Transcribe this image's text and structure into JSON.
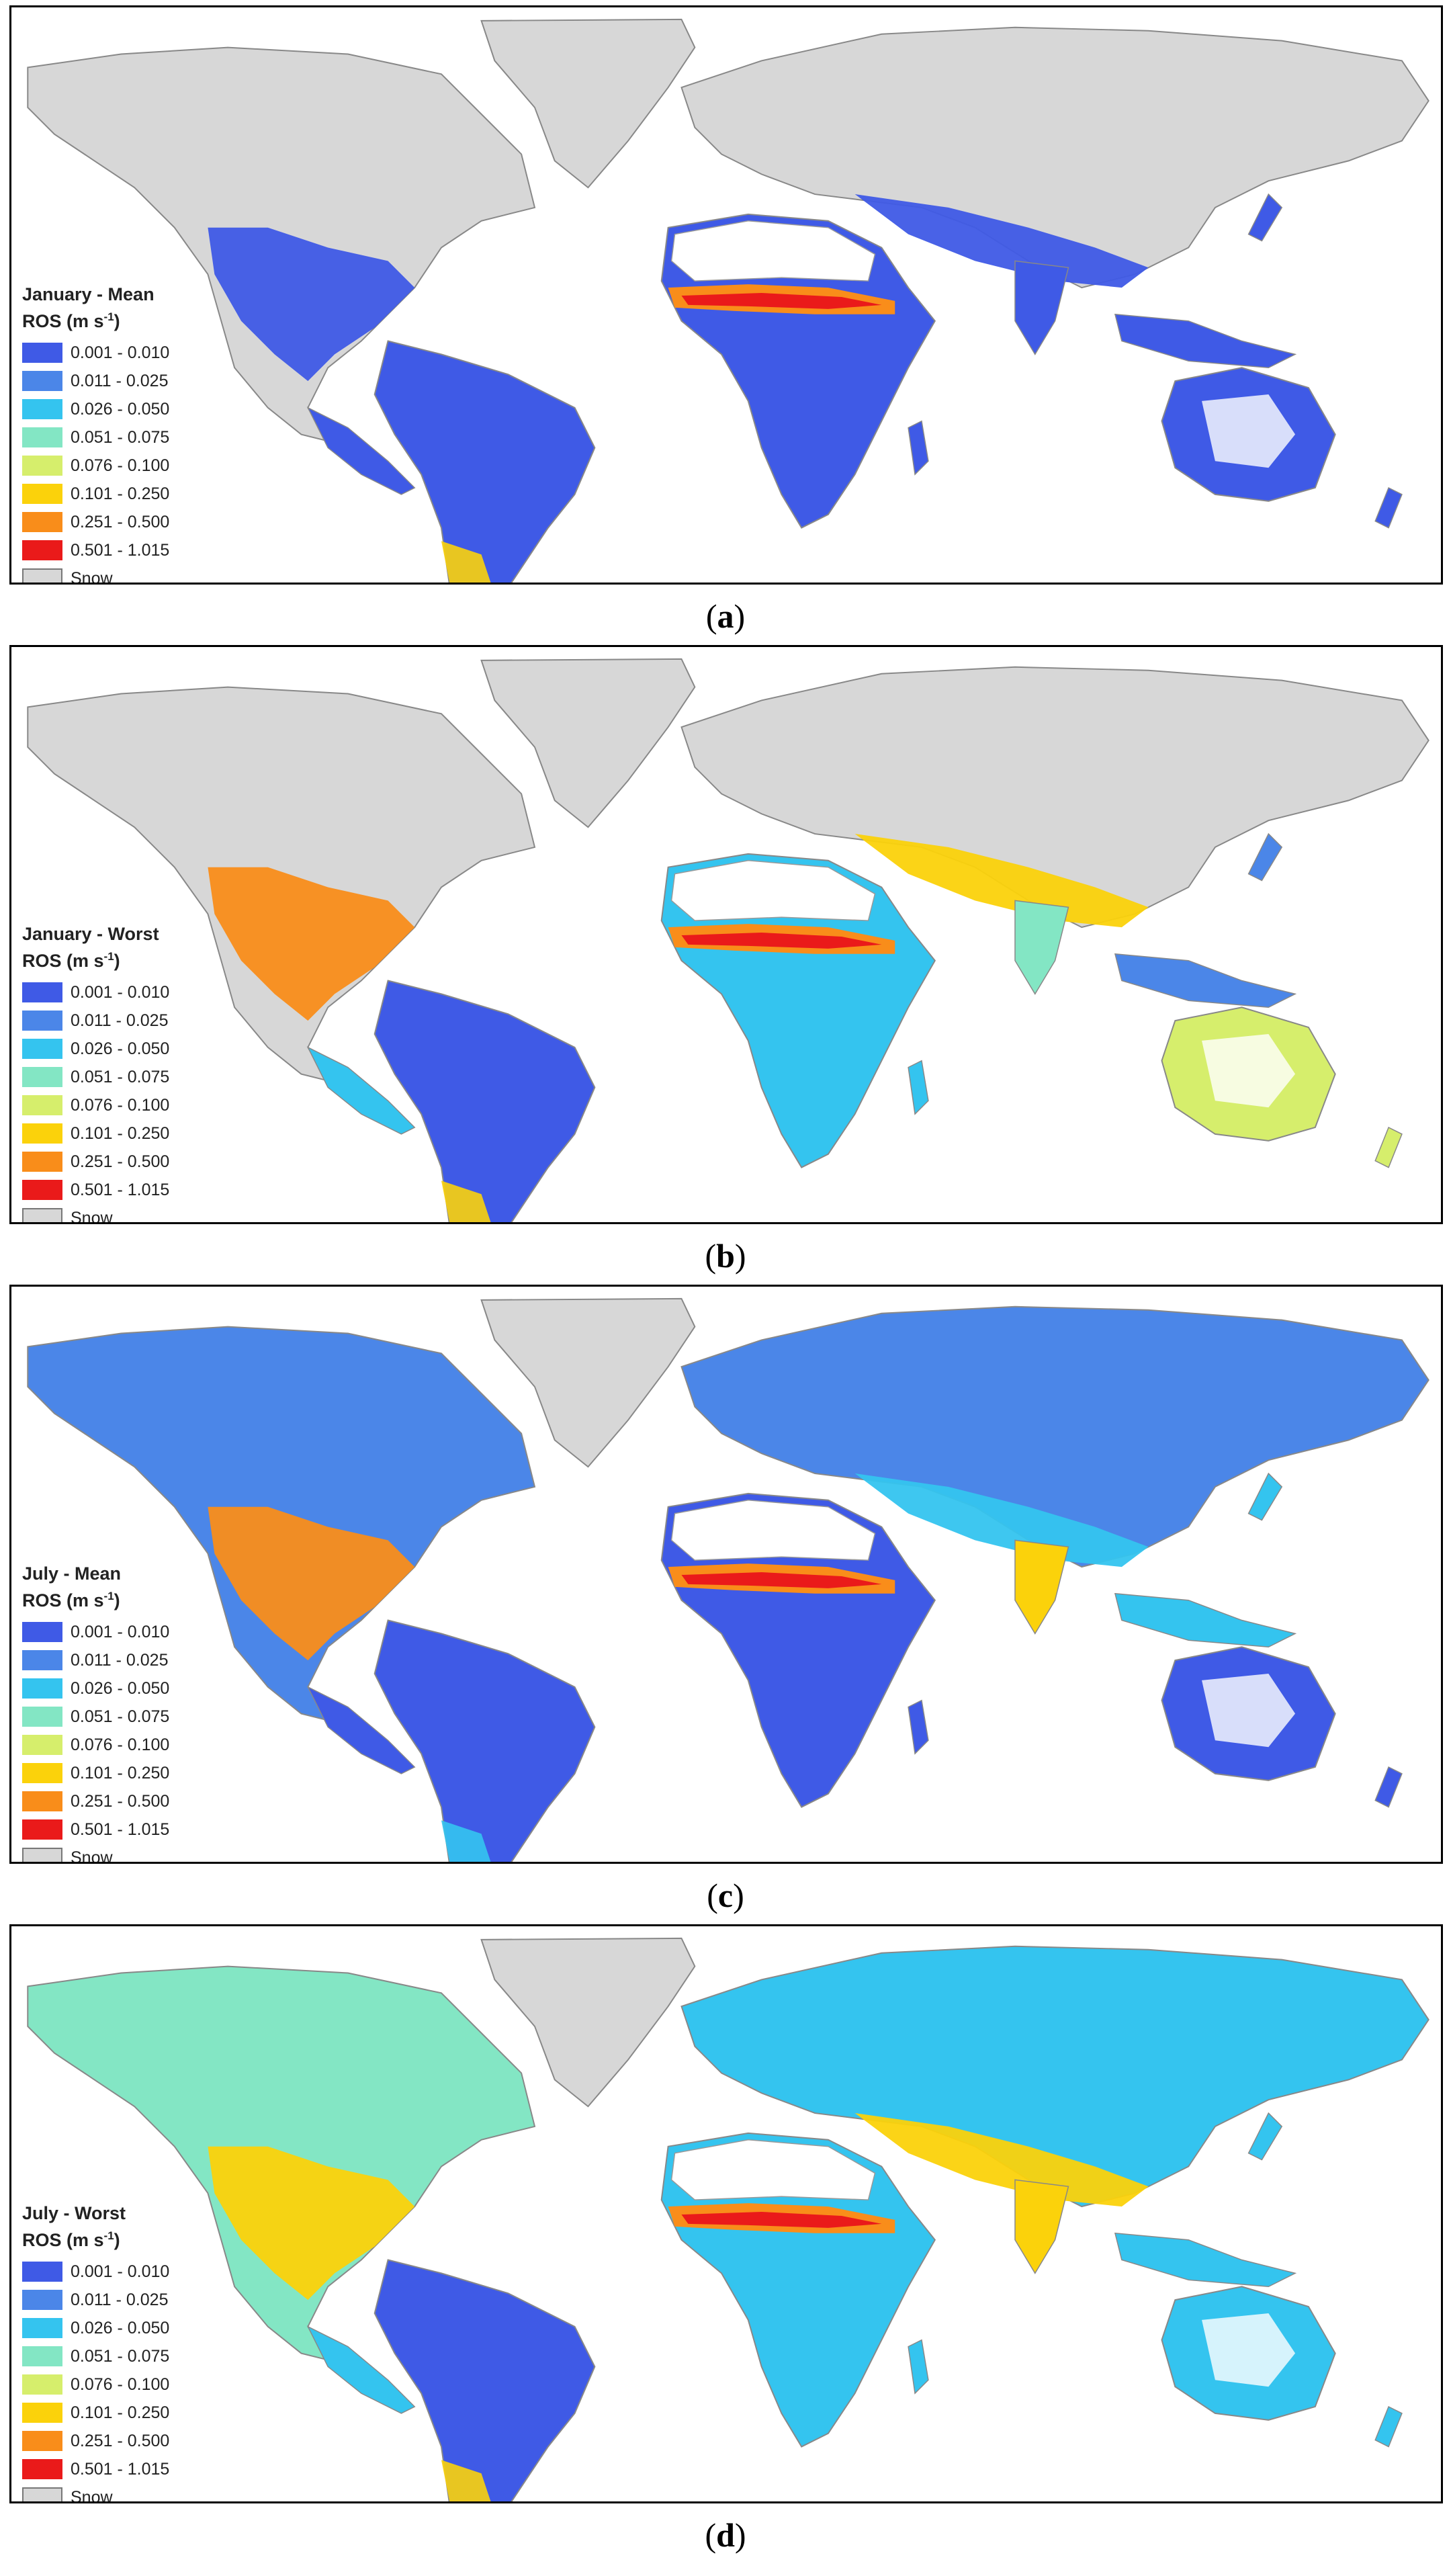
{
  "legend": {
    "items": [
      {
        "label": "0.001 - 0.010",
        "color": "#3f5ae6"
      },
      {
        "label": "0.011 - 0.025",
        "color": "#4b86e8"
      },
      {
        "label": "0.026 - 0.050",
        "color": "#34c4ef"
      },
      {
        "label": "0.051 - 0.075",
        "color": "#83e6c4"
      },
      {
        "label": "0.076 - 0.100",
        "color": "#d6ee6c"
      },
      {
        "label": "0.101 - 0.250",
        "color": "#fbd20b"
      },
      {
        "label": "0.251 - 0.500",
        "color": "#f98d1a"
      },
      {
        "label": "0.501 - 1.015",
        "color": "#ea1a1a"
      },
      {
        "label": "Snow",
        "color": "#d7d7d7"
      }
    ]
  },
  "panels": [
    {
      "title_line1": "January - Mean",
      "title_line2_prefix": "ROS (m s",
      "title_sup": "-1",
      "title_line2_suffix": ")",
      "caption_open": "(",
      "caption_letter": "a",
      "caption_close": ")"
    },
    {
      "title_line1": "January - Worst",
      "title_line2_prefix": "ROS (m s",
      "title_sup": "-1",
      "title_line2_suffix": ")",
      "caption_open": "(",
      "caption_letter": "b",
      "caption_close": ")"
    },
    {
      "title_line1": "July - Mean",
      "title_line2_prefix": "ROS (m s",
      "title_sup": "-1",
      "title_line2_suffix": ")",
      "caption_open": "(",
      "caption_letter": "c",
      "caption_close": ")"
    },
    {
      "title_line1": "July - Worst",
      "title_line2_prefix": "ROS (m s",
      "title_sup": "-1",
      "title_line2_suffix": ")",
      "caption_open": "(",
      "caption_letter": "d",
      "caption_close": ")"
    }
  ]
}
